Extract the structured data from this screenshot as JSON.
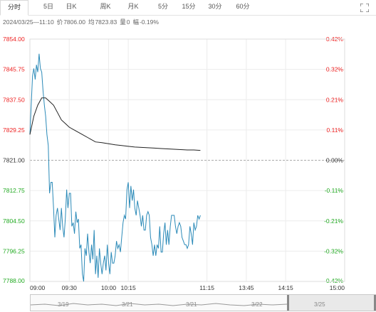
{
  "tabs": [
    {
      "label": "分时",
      "active": true
    },
    {
      "label": "5日",
      "active": false
    },
    {
      "label": "日K",
      "active": false
    },
    {
      "label": "周K",
      "active": false
    },
    {
      "label": "月K",
      "active": false
    },
    {
      "label": "5分",
      "active": false
    },
    {
      "label": "15分",
      "active": false
    },
    {
      "label": "30分",
      "active": false
    },
    {
      "label": "60分",
      "active": false
    }
  ],
  "expand_icon": "expand-icon",
  "quote": {
    "datetime": "2024/03/25—11:10",
    "price_label": "价",
    "price": "7806.00",
    "avg_label": "均",
    "avg": "7823.83",
    "vol_label": "量",
    "vol": "0",
    "chg_label": "幅",
    "chg": "-0.19%"
  },
  "colors": {
    "up": "#ee2222",
    "down": "#22aa22",
    "neutral": "#333333",
    "price_line": "#2b8ab8",
    "avg_line": "#222222",
    "grid": "#ececec"
  },
  "chart_data": {
    "type": "line",
    "title": "",
    "xlabel": "",
    "ylabel": "",
    "prev_close": 7821.0,
    "ylim": [
      7788.0,
      7854.0
    ],
    "y_ticks": [
      "7854.00",
      "7845.75",
      "7837.50",
      "7829.25",
      "7821.00",
      "7812.75",
      "7804.50",
      "7796.25",
      "7788.00"
    ],
    "pct_ticks": [
      "0.42%",
      "0.32%",
      "0.21%",
      "0.11%",
      "0.00%",
      "-0.11%",
      "-0.21%",
      "-0.32%",
      "-0.42%"
    ],
    "x_ticks": [
      "09:00",
      "09:30",
      "10:00",
      "10:15",
      "11:15",
      "13:45",
      "14:15",
      "15:00"
    ],
    "x_minutes": [
      0,
      30,
      60,
      75,
      135,
      165,
      195,
      240
    ],
    "grid": true,
    "series": [
      {
        "x": [
          0,
          1,
          2,
          3,
          4,
          5,
          6,
          7,
          8,
          9,
          10,
          11,
          12,
          13,
          14,
          15,
          16,
          17,
          18,
          19,
          20,
          21,
          22,
          23,
          24,
          25,
          26,
          27,
          28,
          29,
          30,
          31,
          32,
          33,
          34,
          35,
          36,
          37,
          38,
          39,
          40,
          41,
          42,
          43,
          44,
          45,
          46,
          47,
          48,
          49,
          50,
          51,
          52,
          53,
          54,
          55,
          56,
          57,
          58,
          59,
          60,
          61,
          62,
          63,
          64,
          65,
          66,
          67,
          68,
          69,
          70,
          71,
          72,
          73,
          74,
          75,
          76,
          77,
          78,
          79,
          80,
          81,
          82,
          83,
          84,
          85,
          86,
          87,
          88,
          89,
          90,
          91,
          92,
          93,
          94,
          95,
          96,
          97,
          98,
          99,
          100,
          101,
          102,
          103,
          104,
          105,
          106,
          107,
          108,
          109,
          110,
          111,
          112,
          113,
          114,
          115,
          116,
          117,
          118,
          119,
          120,
          121,
          122,
          123,
          124,
          125,
          126,
          127,
          128,
          129,
          130
        ],
        "values": [
          7828,
          7836,
          7844,
          7846,
          7843,
          7847,
          7845,
          7850,
          7846,
          7845,
          7840,
          7836,
          7833,
          7828,
          7825,
          7812,
          7815,
          7815,
          7808,
          7800,
          7806,
          7808,
          7805,
          7802,
          7808,
          7803,
          7800,
          7805,
          7813,
          7808,
          7812,
          7812,
          7803,
          7804,
          7801,
          7807,
          7804,
          7805,
          7797,
          7798,
          7790,
          7788,
          7797,
          7795,
          7801,
          7796,
          7793,
          7798,
          7794,
          7802,
          7790,
          7795,
          7789,
          7797,
          7793,
          7790,
          7793,
          7795,
          7791,
          7798,
          7793,
          7790,
          7796,
          7793,
          7793,
          7795,
          7799,
          7797,
          7798,
          7796,
          7800,
          7804,
          7806,
          7805,
          7813,
          7815,
          7808,
          7814,
          7810,
          7813,
          7808,
          7806,
          7810,
          7808,
          7806,
          7803,
          7806,
          7802,
          7802,
          7806,
          7807,
          7806,
          7800,
          7798,
          7795,
          7798,
          7795,
          7798,
          7797,
          7803,
          7796,
          7796,
          7801,
          7804,
          7798,
          7802,
          7798,
          7803,
          7806,
          7806,
          7806,
          7803,
          7801,
          7803,
          7804,
          7803,
          7800,
          7799,
          7798,
          7798,
          7797,
          7798,
          7803,
          7801,
          7798,
          7804,
          7802,
          7803,
          7806,
          7805,
          7806
        ]
      },
      {
        "x": [
          0,
          3,
          6,
          9,
          12,
          15,
          18,
          21,
          24,
          27,
          30,
          35,
          40,
          45,
          50,
          55,
          60,
          65,
          70,
          75,
          80,
          85,
          90,
          95,
          100,
          105,
          110,
          115,
          120,
          125,
          130
        ],
        "values": [
          7828,
          7833,
          7836,
          7838,
          7838,
          7837,
          7836,
          7834,
          7832,
          7831,
          7830,
          7829,
          7828,
          7827,
          7826,
          7825.8,
          7825.5,
          7825.2,
          7825,
          7824.8,
          7824.6,
          7824.5,
          7824.4,
          7824.3,
          7824.2,
          7824.1,
          7824,
          7823.9,
          7823.8,
          7823.8,
          7823.7
        ]
      }
    ]
  },
  "navigator": {
    "labels": [
      "3/19",
      "3/21",
      "3/21",
      "3/22",
      "3/25"
    ]
  }
}
